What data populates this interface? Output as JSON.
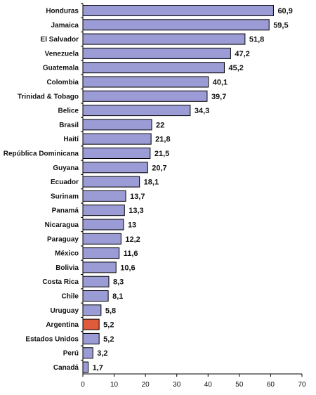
{
  "chart_data": {
    "type": "bar",
    "orientation": "horizontal",
    "title": "",
    "xlabel": "",
    "ylabel": "",
    "xlim": [
      0,
      70
    ],
    "xticks": [
      0,
      10,
      20,
      30,
      40,
      50,
      60,
      70
    ],
    "grid": false,
    "legend": "none",
    "colors": {
      "bar": "#9b9bd5",
      "highlight": "#e05a3c",
      "border": "#000000"
    },
    "highlight_category": "Argentina",
    "categories": [
      "Honduras",
      "Jamaica",
      "El Salvador",
      "Venezuela",
      "Guatemala",
      "Colombia",
      "Trinidad & Tobago",
      "Belice",
      "Brasil",
      "Haití",
      "República Dominicana",
      "Guyana",
      "Ecuador",
      "Surinam",
      "Panamá",
      "Nicaragua",
      "Paraguay",
      "México",
      "Bolivia",
      "Costa Rica",
      "Chile",
      "Uruguay",
      "Argentina",
      "Estados Unidos",
      "Perú",
      "Canadá"
    ],
    "values": [
      60.9,
      59.5,
      51.8,
      47.2,
      45.2,
      40.1,
      39.7,
      34.3,
      22,
      21.8,
      21.5,
      20.7,
      18.1,
      13.7,
      13.3,
      13,
      12.2,
      11.6,
      10.6,
      8.3,
      8.1,
      5.8,
      5.2,
      5.2,
      3.2,
      1.7
    ],
    "value_labels": [
      "60,9",
      "59,5",
      "51,8",
      "47,2",
      "45,2",
      "40,1",
      "39,7",
      "34,3",
      "22",
      "21,8",
      "21,5",
      "20,7",
      "18,1",
      "13,7",
      "13,3",
      "13",
      "12,2",
      "11,6",
      "10,6",
      "8,3",
      "8,1",
      "5,8",
      "5,2",
      "5,2",
      "3,2",
      "1,7"
    ]
  }
}
